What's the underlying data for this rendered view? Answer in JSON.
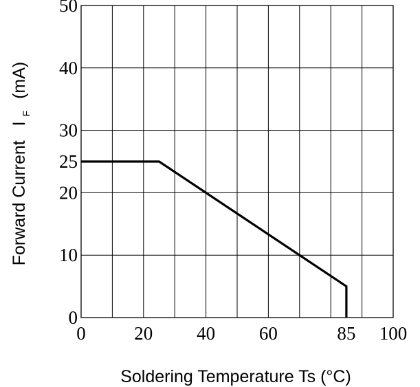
{
  "chart_data": {
    "type": "line",
    "title": "",
    "xlabel": "Soldering Temperature Ts (°C)",
    "ylabel": {
      "prefix": "Forward Current",
      "symbol": "I",
      "subscript": "F",
      "unit": "(mA)"
    },
    "xlim": [
      0,
      100
    ],
    "ylim": [
      0,
      50
    ],
    "x_ticks": [
      0,
      20,
      40,
      60,
      85,
      100
    ],
    "y_ticks": [
      0,
      10,
      20,
      25,
      30,
      40,
      50
    ],
    "x_gridlines": [
      10,
      20,
      30,
      40,
      50,
      60,
      70,
      80,
      90
    ],
    "y_gridlines": [
      10,
      20,
      30,
      40
    ],
    "grid": true,
    "series": [
      {
        "name": "",
        "color": "#000000",
        "x": [
          0,
          25,
          85,
          85
        ],
        "y": [
          25,
          25,
          5,
          0
        ]
      }
    ]
  }
}
